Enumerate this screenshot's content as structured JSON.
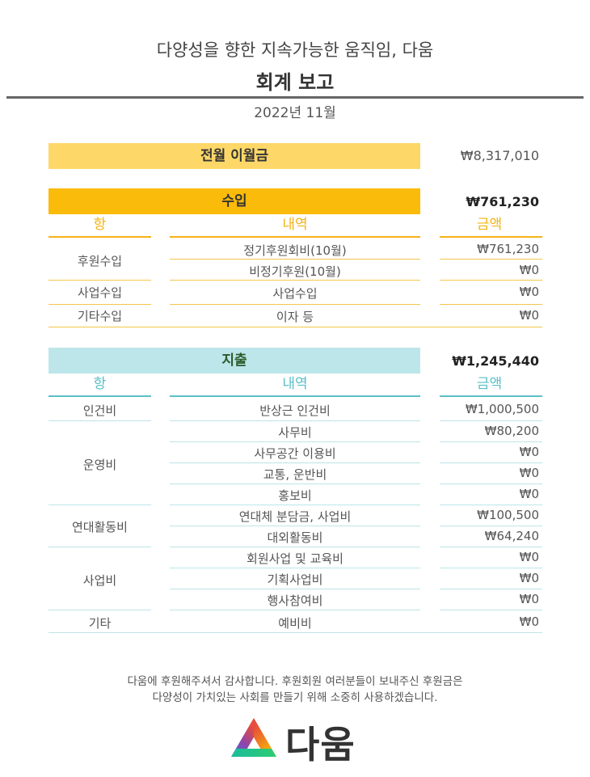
{
  "header": {
    "subtitle": "다양성을 향한 지속가능한 움직임, 다움",
    "title": "회계 보고",
    "period": "2022년 11월"
  },
  "carryover": {
    "label": "전월 이월금",
    "amount": "₩8,317,010"
  },
  "income": {
    "label": "수입",
    "total": "₩761,230",
    "columns": [
      "항",
      "내역",
      "금액"
    ],
    "categories": [
      "후원수입",
      "사업수입",
      "기타수입"
    ],
    "rows": [
      {
        "desc": "정기후원회비(10월)",
        "amount": "₩761,230"
      },
      {
        "desc": "비정기후원(10월)",
        "amount": "₩0"
      },
      {
        "desc": "사업수입",
        "amount": "₩0"
      },
      {
        "desc": "이자 등",
        "amount": "₩0"
      }
    ]
  },
  "expense": {
    "label": "지출",
    "total": "₩1,245,440",
    "columns": [
      "항",
      "내역",
      "금액"
    ],
    "categories": [
      "인건비",
      "운영비",
      "연대활동비",
      "사업비",
      "기타"
    ],
    "rows": [
      {
        "desc": "반상근 인건비",
        "amount": "₩1,000,500"
      },
      {
        "desc": "사무비",
        "amount": "₩80,200"
      },
      {
        "desc": "사무공간 이용비",
        "amount": "₩0"
      },
      {
        "desc": "교통, 운반비",
        "amount": "₩0"
      },
      {
        "desc": "홍보비",
        "amount": "₩0"
      },
      {
        "desc": "연대체 분담금, 사업비",
        "amount": "₩100,500"
      },
      {
        "desc": "대외활동비",
        "amount": "₩64,240"
      },
      {
        "desc": "회원사업 및 교육비",
        "amount": "₩0"
      },
      {
        "desc": "기획사업비",
        "amount": "₩0"
      },
      {
        "desc": "행사참여비",
        "amount": "₩0"
      },
      {
        "desc": "예비비",
        "amount": "₩0"
      }
    ]
  },
  "footer": {
    "line1": "다움에 후원해주셔서 감사합니다. 후원회원 여러분들이 보내주신 후원금은",
    "line2": "다양성이 가치있는 사회를 만들기 위해 소중히 사용하겠습니다.",
    "logo_text": "다움",
    "logo_icon": "triangle-logo-icon"
  },
  "colors": {
    "carry_bar": "#fdd868",
    "income_bar": "#fbbb0a",
    "income_accent": "#f5b316",
    "expense_bar": "#bde6ea",
    "expense_accent": "#5bbfc7"
  }
}
